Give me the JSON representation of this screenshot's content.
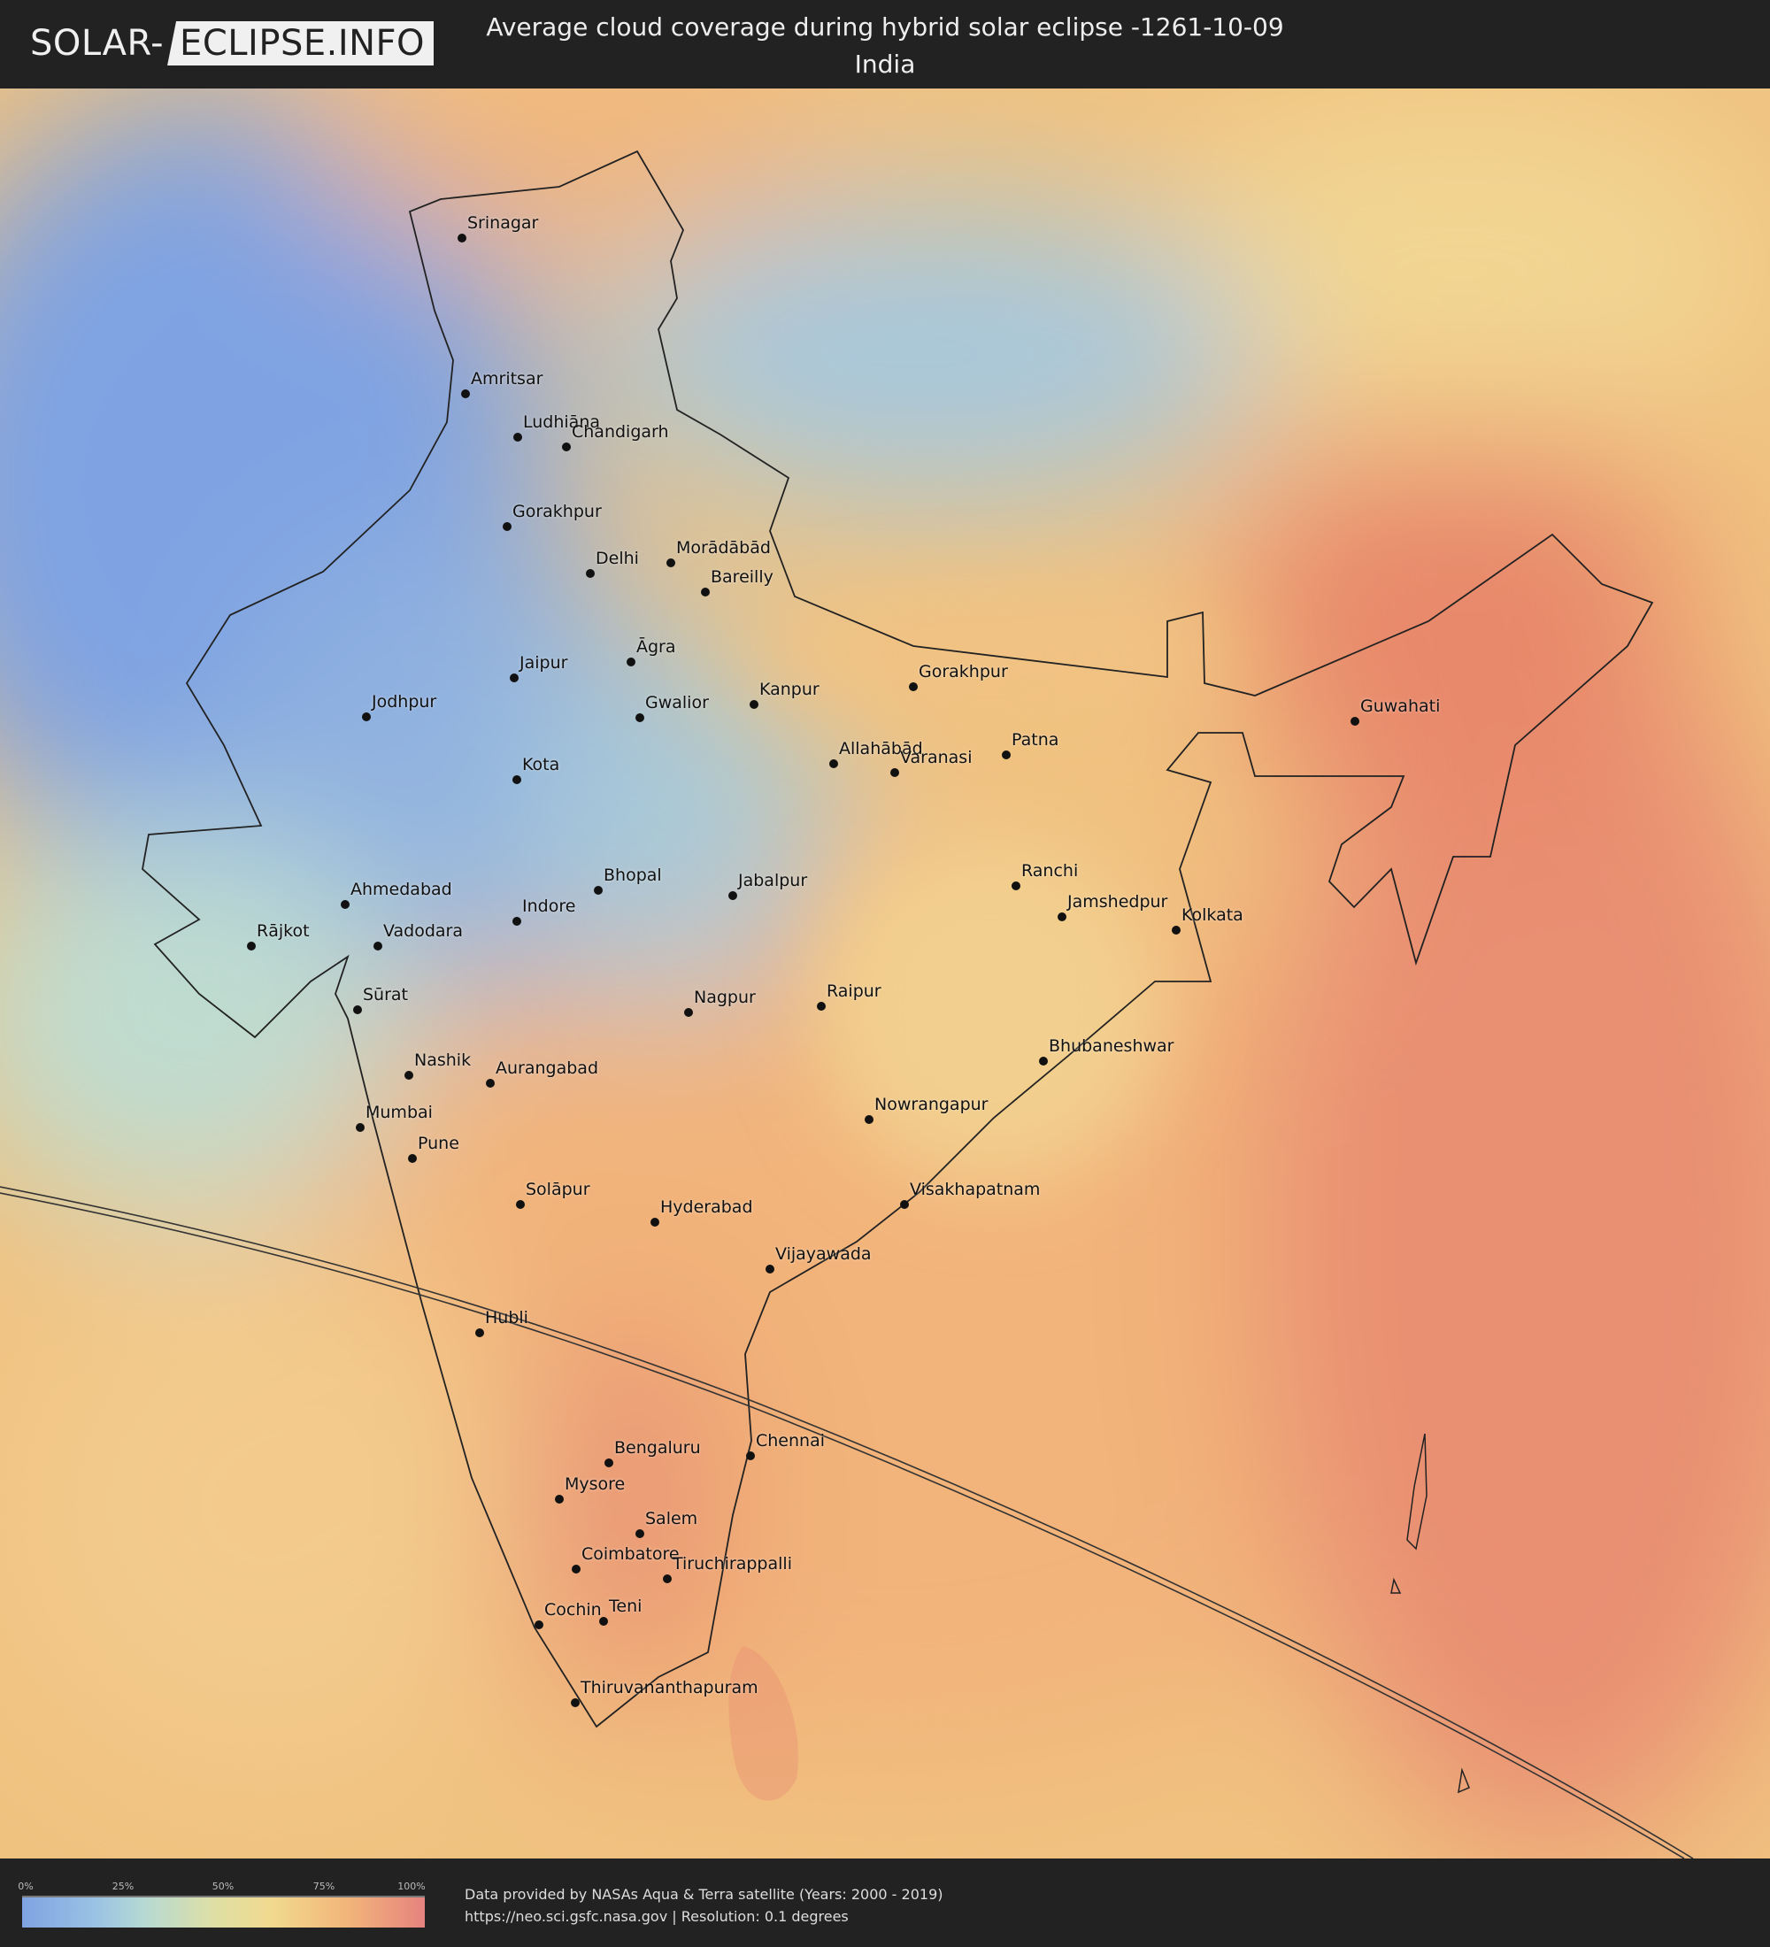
{
  "header": {
    "logo_part1": "SOLAR-",
    "logo_part2": "ECLIPSE.INFO",
    "title": "Average cloud coverage during hybrid solar eclipse -1261-10-09",
    "subtitle": "India"
  },
  "map": {
    "cities": [
      "Srinagar",
      "Amritsar",
      "Ludhiāna",
      "Chandigarh",
      "Gorakhpur",
      "Delhi",
      "Morādābād",
      "Bareilly",
      "Āgra",
      "Jaipur",
      "Jodhpur",
      "Gwalior",
      "Kanpur",
      "Gorakhpur",
      "Allahābād",
      "Varanasi",
      "Patna",
      "Guwahati",
      "Kota",
      "Ranchi",
      "Jamshedpur",
      "Kolkata",
      "Ahmedabad",
      "Bhopal",
      "Jabalpur",
      "Indore",
      "Rājkot",
      "Vadodara",
      "Sūrat",
      "Nagpur",
      "Raipur",
      "Bhubaneshwar",
      "Nashik",
      "Aurangabad",
      "Nowrangapur",
      "Mumbai",
      "Pune",
      "Solāpur",
      "Hyderabad",
      "Visakhapatnam",
      "Vijayawada",
      "Hubli",
      "Chennai",
      "Bengaluru",
      "Mysore",
      "Salem",
      "Coimbatore",
      "Tiruchirappalli",
      "Cochin",
      "Teni",
      "Thiruvananthapuram"
    ],
    "colors": {
      "low": "#7fa3e2",
      "mid": "#f1d98f",
      "high": "#e6837f",
      "eclipse_path": "#333333",
      "border": "#222222"
    }
  },
  "legend": {
    "ticks": [
      "0%",
      "25%",
      "50%",
      "75%",
      "100%"
    ],
    "scale_colors": [
      "#7fa3e2",
      "#b5d9d4",
      "#f1d98f",
      "#f2b77a",
      "#e6837f"
    ]
  },
  "footer": {
    "credit_line1": "Data provided by NASAs Aqua & Terra satellite (Years: 2000 - 2019)",
    "credit_line2": "https://neo.sci.gsfc.nasa.gov | Resolution: 0.1 degrees"
  }
}
